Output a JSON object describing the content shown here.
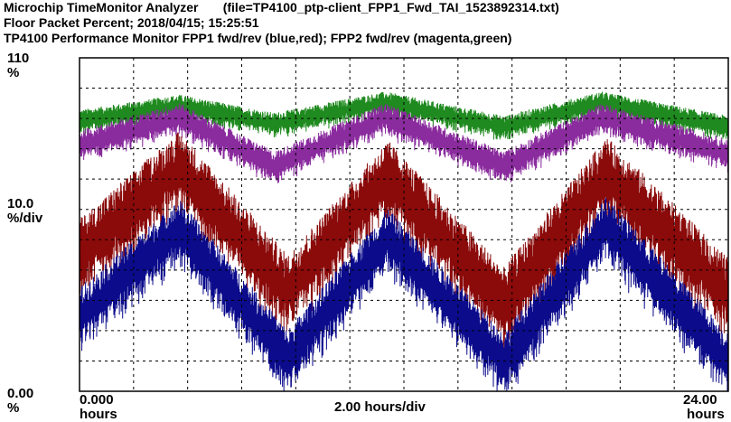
{
  "header": {
    "app_name": "Microchip TimeMonitor Analyzer",
    "file_label": "(file=TP4100_ptp-client_FPP1_Fwd_TAI_1523892314.txt)",
    "line2": "Floor Packet Percent; 2018/04/15; 15:25:51",
    "line3": "TP4100 Performance Monitor FPP1 fwd/rev (blue,red); FPP2 fwd/rev (magenta,green)"
  },
  "axis": {
    "y_top": "110",
    "y_top_unit": "%",
    "y_scale": "10.0",
    "y_scale_unit": "%/div",
    "y_bottom": "0.00",
    "y_bottom_unit": "%",
    "x_start": "0.000",
    "x_start_unit": "hours",
    "x_scale": "2.00 hours/div",
    "x_end": "24.00",
    "x_end_unit": "hours"
  },
  "colors": {
    "blue": "#0b0b8c",
    "red": "#8b0a0a",
    "magenta": "#8a2b9e",
    "green": "#1f8a1f",
    "grid": "#000000"
  },
  "chart_data": {
    "type": "line",
    "title": "TP4100 Performance Monitor FPP1 fwd/rev (blue,red); FPP2 fwd/rev (magenta,green)",
    "xlabel": "hours",
    "ylabel": "%",
    "xlim": [
      0,
      24
    ],
    "ylim": [
      0,
      110
    ],
    "grid": true,
    "series": [
      {
        "name": "FPP2 rev (green)",
        "color": "green",
        "x": [
          0,
          3.7,
          7.2,
          11.3,
          15.7,
          19.3,
          24
        ],
        "center": [
          89,
          94,
          88,
          95,
          87,
          95,
          87
        ],
        "noise": 3
      },
      {
        "name": "FPP2 fwd (magenta)",
        "color": "magenta",
        "x": [
          0,
          3.7,
          7.2,
          11.3,
          15.7,
          19.3,
          24
        ],
        "center": [
          81,
          90,
          74,
          90,
          74,
          90,
          78
        ],
        "noise": 4
      },
      {
        "name": "FPP1 rev (red)",
        "color": "red",
        "x": [
          0,
          3.7,
          7.7,
          11.4,
          15.7,
          19.5,
          24
        ],
        "center": [
          44,
          73,
          32,
          70,
          28,
          71,
          31
        ],
        "noise": 10
      },
      {
        "name": "FPP1 fwd (blue)",
        "color": "blue",
        "x": [
          0,
          3.7,
          7.7,
          11.4,
          15.7,
          19.5,
          24
        ],
        "center": [
          24,
          53,
          10,
          50,
          9,
          54,
          9
        ],
        "noise": 8
      }
    ]
  }
}
